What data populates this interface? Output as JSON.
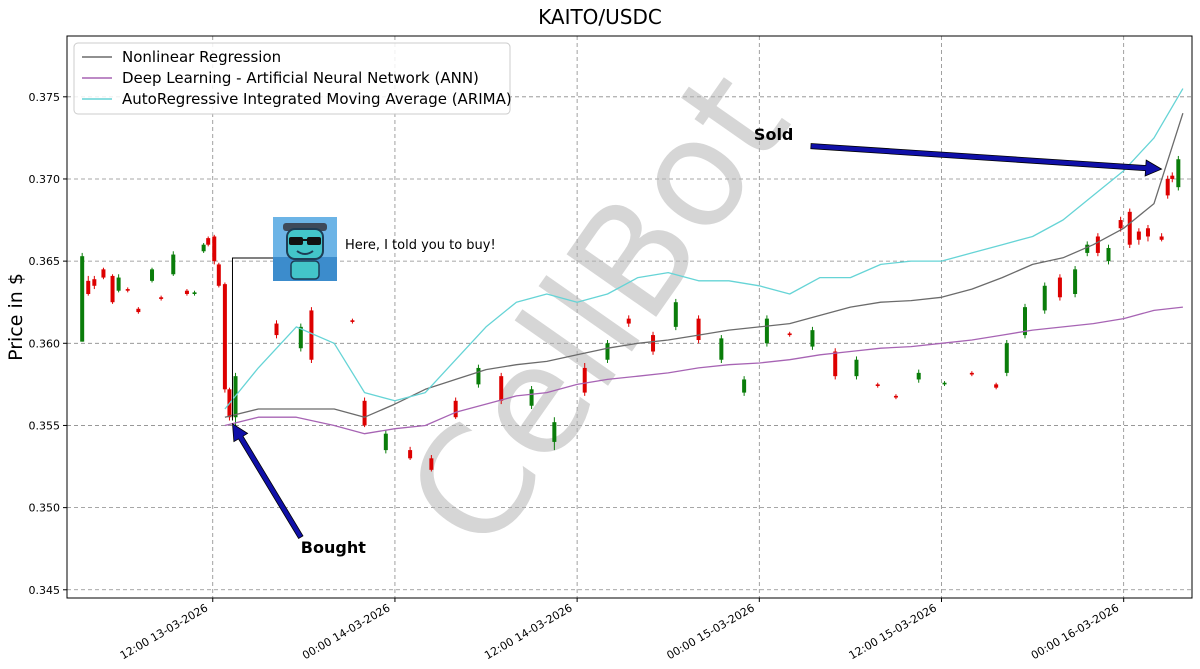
{
  "chart_data": {
    "type": "line",
    "title": "KAITO/USDC",
    "xlabel": "",
    "ylabel": "Price in $",
    "ylim": [
      0.3445,
      0.3787
    ],
    "xlim_hours": [
      -9.6,
      64.5
    ],
    "y_ticks": [
      "0.345",
      "0.350",
      "0.355",
      "0.360",
      "0.365",
      "0.370",
      "0.375"
    ],
    "x_ticks": [
      {
        "hour": 0,
        "label": "12:00 13-03-2026"
      },
      {
        "hour": 12,
        "label": "00:00 14-03-2026"
      },
      {
        "hour": 24,
        "label": "12:00 14-03-2026"
      },
      {
        "hour": 36,
        "label": "00:00 15-03-2026"
      },
      {
        "hour": 48,
        "label": "12:00 15-03-2026"
      },
      {
        "hour": 60,
        "label": "00:00 16-03-2026"
      }
    ],
    "grid": true,
    "legend_position": "upper-left",
    "legend": [
      {
        "label": "Nonlinear Regression",
        "color": "#6b6b6b"
      },
      {
        "label": "Deep Learning - Artificial Neural Network (ANN)",
        "color": "#a764b4"
      },
      {
        "label": "AutoRegressive Integrated Moving Average (ARIMA)",
        "color": "#66d4d6"
      }
    ],
    "series": [
      {
        "name": "Nonlinear Regression",
        "color": "#6b6b6b",
        "x": [
          0.8,
          3,
          5.5,
          8,
          10,
          12,
          14,
          16,
          18,
          20,
          22,
          24,
          26,
          28,
          30,
          32,
          34,
          36,
          38,
          40,
          42,
          44,
          46,
          48,
          50,
          52,
          54,
          56,
          58,
          60,
          62,
          63.9
        ],
        "y": [
          0.3555,
          0.356,
          0.356,
          0.356,
          0.3555,
          0.3563,
          0.3572,
          0.3578,
          0.3584,
          0.3587,
          0.3589,
          0.3593,
          0.3597,
          0.36,
          0.3602,
          0.3605,
          0.3608,
          0.361,
          0.3612,
          0.3617,
          0.3622,
          0.3625,
          0.3626,
          0.3628,
          0.3633,
          0.364,
          0.3648,
          0.3652,
          0.366,
          0.367,
          0.3685,
          0.374
        ]
      },
      {
        "name": "Deep Learning - Artificial Neural Network (ANN)",
        "color": "#a764b4",
        "x": [
          0.8,
          3,
          5.5,
          8,
          10,
          12,
          14,
          16,
          18,
          20,
          22,
          24,
          26,
          28,
          30,
          32,
          34,
          36,
          38,
          40,
          42,
          44,
          46,
          48,
          50,
          52,
          54,
          56,
          58,
          60,
          62,
          63.9
        ],
        "y": [
          0.355,
          0.3555,
          0.3555,
          0.355,
          0.3545,
          0.3548,
          0.355,
          0.3558,
          0.3563,
          0.3568,
          0.357,
          0.3575,
          0.3578,
          0.358,
          0.3582,
          0.3585,
          0.3587,
          0.3588,
          0.359,
          0.3593,
          0.3595,
          0.3597,
          0.3598,
          0.36,
          0.3602,
          0.3605,
          0.3608,
          0.361,
          0.3612,
          0.3615,
          0.362,
          0.3622
        ]
      },
      {
        "name": "AutoRegressive Integrated Moving Average (ARIMA)",
        "color": "#66d4d6",
        "x": [
          0.8,
          3,
          5.5,
          8,
          10,
          12,
          14,
          16,
          18,
          20,
          22,
          24,
          26,
          28,
          30,
          32,
          34,
          36,
          38,
          40,
          42,
          44,
          46,
          48,
          50,
          52,
          54,
          56,
          58,
          60,
          62,
          63.9
        ],
        "y": [
          0.356,
          0.3585,
          0.361,
          0.36,
          0.357,
          0.3565,
          0.357,
          0.359,
          0.361,
          0.3625,
          0.363,
          0.3625,
          0.363,
          0.364,
          0.3643,
          0.3638,
          0.3638,
          0.3635,
          0.363,
          0.364,
          0.364,
          0.3648,
          0.365,
          0.365,
          0.3655,
          0.366,
          0.3665,
          0.3675,
          0.369,
          0.3705,
          0.3725,
          0.3755
        ]
      }
    ],
    "candles": [
      {
        "x": -8.6,
        "open": 0.3601,
        "close": 0.3653,
        "high": 0.3655,
        "low": 0.3601
      },
      {
        "x": -8.2,
        "open": 0.3638,
        "close": 0.363,
        "high": 0.3641,
        "low": 0.3629
      },
      {
        "x": -7.8,
        "open": 0.3639,
        "close": 0.3635,
        "high": 0.3641,
        "low": 0.3633
      },
      {
        "x": -7.2,
        "open": 0.3645,
        "close": 0.364,
        "high": 0.3646,
        "low": 0.3639
      },
      {
        "x": -6.6,
        "open": 0.3641,
        "close": 0.3625,
        "high": 0.3642,
        "low": 0.3624
      },
      {
        "x": -6.2,
        "open": 0.3632,
        "close": 0.364,
        "high": 0.3642,
        "low": 0.3631
      },
      {
        "x": -5.6,
        "open": 0.3633,
        "close": 0.3632,
        "high": 0.3634,
        "low": 0.3631
      },
      {
        "x": -4.9,
        "open": 0.3621,
        "close": 0.3619,
        "high": 0.3622,
        "low": 0.3618
      },
      {
        "x": -4.0,
        "open": 0.3638,
        "close": 0.3645,
        "high": 0.3646,
        "low": 0.3637
      },
      {
        "x": -3.4,
        "open": 0.3628,
        "close": 0.3627,
        "high": 0.3629,
        "low": 0.3626
      },
      {
        "x": -2.6,
        "open": 0.3642,
        "close": 0.3654,
        "high": 0.3656,
        "low": 0.3641
      },
      {
        "x": -1.7,
        "open": 0.3632,
        "close": 0.363,
        "high": 0.3633,
        "low": 0.3629
      },
      {
        "x": -1.2,
        "open": 0.363,
        "close": 0.3631,
        "high": 0.3632,
        "low": 0.3629
      },
      {
        "x": -0.6,
        "open": 0.3656,
        "close": 0.366,
        "high": 0.3661,
        "low": 0.3655
      },
      {
        "x": -0.3,
        "open": 0.3664,
        "close": 0.366,
        "high": 0.3665,
        "low": 0.3659
      },
      {
        "x": 0.1,
        "open": 0.3665,
        "close": 0.365,
        "high": 0.3666,
        "low": 0.3648
      },
      {
        "x": 0.4,
        "open": 0.3648,
        "close": 0.3635,
        "high": 0.3649,
        "low": 0.3634
      },
      {
        "x": 0.8,
        "open": 0.3636,
        "close": 0.3572,
        "high": 0.3637,
        "low": 0.357
      },
      {
        "x": 1.1,
        "open": 0.3572,
        "close": 0.3555,
        "high": 0.3573,
        "low": 0.3553
      },
      {
        "x": 1.5,
        "open": 0.3555,
        "close": 0.358,
        "high": 0.3582,
        "low": 0.3547
      },
      {
        "x": 4.2,
        "open": 0.3612,
        "close": 0.3605,
        "high": 0.3614,
        "low": 0.3603
      },
      {
        "x": 5.8,
        "open": 0.3597,
        "close": 0.361,
        "high": 0.3612,
        "low": 0.3595
      },
      {
        "x": 6.5,
        "open": 0.362,
        "close": 0.359,
        "high": 0.3622,
        "low": 0.3588
      },
      {
        "x": 9.2,
        "open": 0.3614,
        "close": 0.3613,
        "high": 0.3615,
        "low": 0.3612
      },
      {
        "x": 10.0,
        "open": 0.3565,
        "close": 0.355,
        "high": 0.3567,
        "low": 0.3549
      },
      {
        "x": 11.4,
        "open": 0.3535,
        "close": 0.3545,
        "high": 0.3547,
        "low": 0.3533
      },
      {
        "x": 13.0,
        "open": 0.3535,
        "close": 0.353,
        "high": 0.3537,
        "low": 0.3529
      },
      {
        "x": 14.4,
        "open": 0.353,
        "close": 0.3523,
        "high": 0.3532,
        "low": 0.3522
      },
      {
        "x": 16.0,
        "open": 0.3565,
        "close": 0.3555,
        "high": 0.3567,
        "low": 0.3554
      },
      {
        "x": 17.5,
        "open": 0.3575,
        "close": 0.3585,
        "high": 0.3587,
        "low": 0.3573
      },
      {
        "x": 19.0,
        "open": 0.358,
        "close": 0.3565,
        "high": 0.3582,
        "low": 0.3563
      },
      {
        "x": 21.0,
        "open": 0.3562,
        "close": 0.3572,
        "high": 0.3574,
        "low": 0.356
      },
      {
        "x": 22.5,
        "open": 0.354,
        "close": 0.3552,
        "high": 0.3555,
        "low": 0.3535
      },
      {
        "x": 24.5,
        "open": 0.3585,
        "close": 0.357,
        "high": 0.3588,
        "low": 0.3568
      },
      {
        "x": 26.0,
        "open": 0.359,
        "close": 0.36,
        "high": 0.3602,
        "low": 0.3588
      },
      {
        "x": 27.4,
        "open": 0.3615,
        "close": 0.3612,
        "high": 0.3617,
        "low": 0.361
      },
      {
        "x": 29.0,
        "open": 0.3605,
        "close": 0.3595,
        "high": 0.3607,
        "low": 0.3593
      },
      {
        "x": 30.5,
        "open": 0.361,
        "close": 0.3625,
        "high": 0.3627,
        "low": 0.3608
      },
      {
        "x": 32.0,
        "open": 0.3615,
        "close": 0.3602,
        "high": 0.3617,
        "low": 0.36
      },
      {
        "x": 33.5,
        "open": 0.359,
        "close": 0.3603,
        "high": 0.3605,
        "low": 0.3588
      },
      {
        "x": 35.0,
        "open": 0.357,
        "close": 0.3578,
        "high": 0.358,
        "low": 0.3568
      },
      {
        "x": 36.5,
        "open": 0.36,
        "close": 0.3615,
        "high": 0.3617,
        "low": 0.3598
      },
      {
        "x": 38.0,
        "open": 0.3606,
        "close": 0.3605,
        "high": 0.3607,
        "low": 0.3604
      },
      {
        "x": 39.5,
        "open": 0.3598,
        "close": 0.3608,
        "high": 0.361,
        "low": 0.3596
      },
      {
        "x": 41.0,
        "open": 0.3595,
        "close": 0.358,
        "high": 0.3597,
        "low": 0.3578
      },
      {
        "x": 42.4,
        "open": 0.358,
        "close": 0.359,
        "high": 0.3592,
        "low": 0.3578
      },
      {
        "x": 43.8,
        "open": 0.3575,
        "close": 0.3574,
        "high": 0.3576,
        "low": 0.3573
      },
      {
        "x": 45.0,
        "open": 0.3568,
        "close": 0.3567,
        "high": 0.3569,
        "low": 0.3566
      },
      {
        "x": 46.5,
        "open": 0.3578,
        "close": 0.3582,
        "high": 0.3584,
        "low": 0.3576
      },
      {
        "x": 48.2,
        "open": 0.3575,
        "close": 0.3576,
        "high": 0.3577,
        "low": 0.3574
      },
      {
        "x": 50.0,
        "open": 0.3582,
        "close": 0.3581,
        "high": 0.3583,
        "low": 0.358
      },
      {
        "x": 51.6,
        "open": 0.3575,
        "close": 0.3573,
        "high": 0.3576,
        "low": 0.3572
      },
      {
        "x": 52.3,
        "open": 0.3582,
        "close": 0.36,
        "high": 0.3602,
        "low": 0.358
      },
      {
        "x": 53.5,
        "open": 0.3605,
        "close": 0.3622,
        "high": 0.3624,
        "low": 0.3603
      },
      {
        "x": 54.8,
        "open": 0.362,
        "close": 0.3635,
        "high": 0.3637,
        "low": 0.3618
      },
      {
        "x": 55.8,
        "open": 0.364,
        "close": 0.3628,
        "high": 0.3642,
        "low": 0.3626
      },
      {
        "x": 56.8,
        "open": 0.363,
        "close": 0.3645,
        "high": 0.3647,
        "low": 0.3628
      },
      {
        "x": 57.6,
        "open": 0.3655,
        "close": 0.366,
        "high": 0.3662,
        "low": 0.3653
      },
      {
        "x": 58.3,
        "open": 0.3665,
        "close": 0.3655,
        "high": 0.3667,
        "low": 0.3653
      },
      {
        "x": 59.0,
        "open": 0.365,
        "close": 0.3658,
        "high": 0.366,
        "low": 0.3648
      },
      {
        "x": 59.8,
        "open": 0.3675,
        "close": 0.367,
        "high": 0.3677,
        "low": 0.3668
      },
      {
        "x": 60.4,
        "open": 0.368,
        "close": 0.366,
        "high": 0.3682,
        "low": 0.3658
      },
      {
        "x": 61.0,
        "open": 0.3668,
        "close": 0.3663,
        "high": 0.367,
        "low": 0.366
      },
      {
        "x": 61.6,
        "open": 0.367,
        "close": 0.3665,
        "high": 0.3672,
        "low": 0.3662
      },
      {
        "x": 62.5,
        "open": 0.3665,
        "close": 0.3663,
        "high": 0.3667,
        "low": 0.3662
      },
      {
        "x": 62.9,
        "open": 0.37,
        "close": 0.369,
        "high": 0.3702,
        "low": 0.3688
      },
      {
        "x": 63.2,
        "open": 0.3702,
        "close": 0.37,
        "high": 0.3704,
        "low": 0.3698
      },
      {
        "x": 63.6,
        "open": 0.3695,
        "close": 0.3712,
        "high": 0.3714,
        "low": 0.3693
      }
    ],
    "annotations": [
      {
        "name": "bought",
        "text": "Bought",
        "point_x": 1.3,
        "point_y": 0.3551,
        "text_x": 5.8,
        "text_y": 0.3482
      },
      {
        "name": "sold",
        "text": "Sold",
        "point_x": 62.5,
        "point_y": 0.3706,
        "text_x": 39.4,
        "text_y": 0.372
      },
      {
        "name": "callout",
        "text": "Here, I told you to buy!",
        "point_x": 1.3,
        "point_y": 0.3553
      }
    ],
    "watermark": "CellBot"
  }
}
